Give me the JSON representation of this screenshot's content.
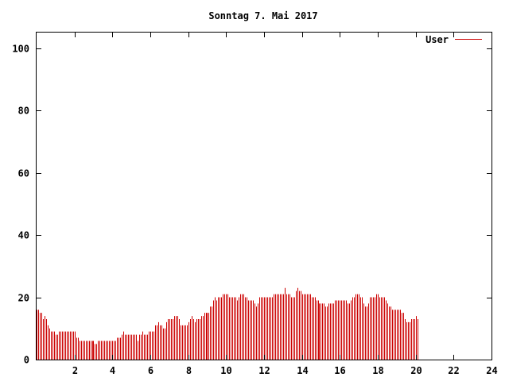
{
  "chart_data": {
    "type": "bar",
    "title": "Sonntag 7. Mai 2017",
    "xlabel": "",
    "ylabel": "",
    "xlim": [
      0,
      24
    ],
    "ylim": [
      0,
      105
    ],
    "x_ticks": [
      2,
      4,
      6,
      8,
      10,
      12,
      14,
      16,
      18,
      20,
      22,
      24
    ],
    "y_ticks": [
      0,
      20,
      40,
      60,
      80,
      100
    ],
    "grid": false,
    "legend_position": "top-right",
    "series": [
      {
        "name": "User",
        "color": "#cc0000",
        "sample_interval_hours": 0.08333,
        "values": [
          16,
          16,
          15,
          15,
          13,
          14,
          13,
          11,
          10,
          9,
          9,
          9,
          8,
          8,
          9,
          9,
          9,
          9,
          9,
          9,
          9,
          9,
          9,
          9,
          9,
          7,
          7,
          6,
          6,
          6,
          6,
          6,
          6,
          6,
          6,
          6,
          6,
          5,
          5,
          6,
          6,
          6,
          6,
          6,
          6,
          6,
          6,
          6,
          6,
          6,
          6,
          7,
          7,
          7,
          8,
          9,
          8,
          8,
          8,
          8,
          8,
          8,
          8,
          8,
          6,
          8,
          8,
          9,
          8,
          8,
          8,
          9,
          9,
          9,
          9,
          11,
          11,
          12,
          11,
          11,
          10,
          10,
          12,
          13,
          13,
          13,
          13,
          14,
          14,
          14,
          13,
          11,
          11,
          11,
          11,
          11,
          12,
          13,
          14,
          13,
          12,
          13,
          13,
          13,
          14,
          14,
          15,
          15,
          15,
          15,
          17,
          17,
          19,
          20,
          19,
          20,
          20,
          20,
          21,
          21,
          21,
          21,
          20,
          20,
          20,
          20,
          20,
          19,
          20,
          21,
          21,
          21,
          20,
          20,
          19,
          19,
          19,
          19,
          18,
          17,
          18,
          20,
          20,
          20,
          20,
          20,
          20,
          20,
          20,
          20,
          21,
          21,
          21,
          21,
          21,
          21,
          21,
          23,
          21,
          21,
          21,
          20,
          20,
          20,
          22,
          23,
          22,
          22,
          21,
          21,
          21,
          21,
          21,
          21,
          20,
          20,
          20,
          19,
          19,
          18,
          18,
          18,
          18,
          17,
          17,
          18,
          18,
          18,
          18,
          19,
          19,
          19,
          19,
          19,
          19,
          19,
          19,
          18,
          18,
          19,
          20,
          20,
          21,
          21,
          21,
          20,
          20,
          18,
          17,
          17,
          18,
          20,
          20,
          20,
          20,
          21,
          21,
          20,
          20,
          20,
          20,
          19,
          18,
          17,
          17,
          16,
          16,
          16,
          16,
          16,
          16,
          15,
          15,
          13,
          12,
          12,
          12,
          13,
          13,
          13,
          14,
          13
        ]
      }
    ]
  }
}
